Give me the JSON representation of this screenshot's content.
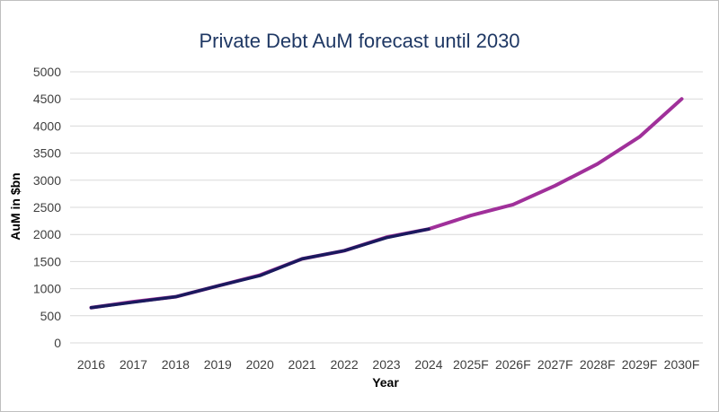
{
  "chart_data": {
    "type": "line",
    "title": "Private Debt AuM forecast until 2030",
    "xlabel": "Year",
    "ylabel": "AuM in $bn",
    "categories": [
      "2016",
      "2017",
      "2018",
      "2019",
      "2020",
      "2021",
      "2022",
      "2023",
      "2024",
      "2025F",
      "2026F",
      "2027F",
      "2028F",
      "2029F",
      "2030F"
    ],
    "ylim": [
      0,
      5000
    ],
    "yticks": [
      0,
      500,
      1000,
      1500,
      2000,
      2500,
      3000,
      3500,
      4000,
      4500,
      5000
    ],
    "grid": true,
    "series": [
      {
        "values": [
          650,
          760,
          850,
          1050,
          1250,
          1550,
          1700,
          1950,
          2100,
          2350,
          2550,
          2900,
          3300,
          3800,
          4500
        ],
        "color": "#a0309a"
      },
      {
        "values": [
          650,
          750,
          850,
          1050,
          1240,
          1550,
          1700,
          1940,
          2100,
          null,
          null,
          null,
          null,
          null,
          null
        ],
        "color": "#1a1a5e"
      }
    ]
  }
}
